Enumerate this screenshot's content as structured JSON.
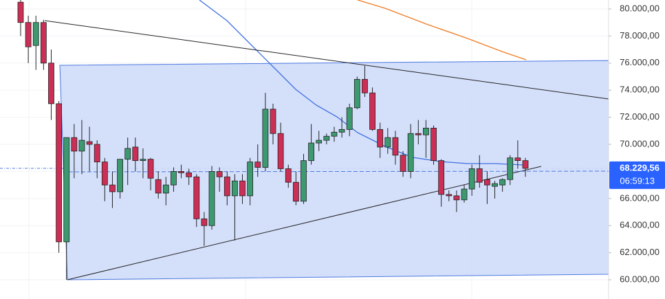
{
  "chart_data": {
    "type": "candlestick",
    "open": [
      80500,
      79000,
      77300,
      79000,
      76000,
      73000,
      62800,
      70500,
      69500,
      70200,
      70000,
      68700,
      67000,
      66500,
      68900,
      69800,
      68800,
      68900,
      67400,
      66400,
      67000,
      68000,
      67900,
      67600,
      64500,
      64000,
      68000,
      67600,
      66200,
      67300,
      66200,
      68700,
      68300,
      72600,
      70800,
      68200,
      67200,
      65800,
      68800,
      70100,
      70300,
      70600,
      70900,
      71100,
      72700,
      74800,
      73800,
      71100,
      69800,
      70500,
      69200,
      68000,
      70800,
      70700,
      71200,
      68800,
      66300,
      66200,
      65900,
      66700,
      68200,
      67400,
      66900,
      67000,
      67400,
      69000,
      68800
    ],
    "high": [
      81000,
      79500,
      79500,
      79200,
      77000,
      73200,
      70500,
      71500,
      71800,
      71300,
      70300,
      69000,
      68000,
      68700,
      70500,
      70500,
      69700,
      69000,
      68000,
      67600,
      68300,
      68500,
      68200,
      67800,
      65000,
      68400,
      68300,
      68000,
      67800,
      67800,
      69000,
      70000,
      73800,
      73000,
      71600,
      68500,
      68000,
      69300,
      71500,
      71000,
      70800,
      71300,
      72000,
      73000,
      75000,
      75800,
      74200,
      71600,
      71200,
      71000,
      69500,
      71500,
      71800,
      71800,
      71400,
      68900,
      66600,
      66600,
      67000,
      68500,
      69200,
      68000,
      67300,
      67500,
      69200,
      70300,
      69000
    ],
    "low": [
      78000,
      76000,
      75500,
      75500,
      71800,
      62000,
      60000,
      67500,
      67800,
      68000,
      67500,
      65800,
      65300,
      66000,
      67000,
      68000,
      67500,
      66600,
      66000,
      65500,
      66500,
      67500,
      67000,
      63900,
      62500,
      63700,
      66500,
      65500,
      62900,
      65600,
      65500,
      67600,
      68000,
      70000,
      68000,
      66800,
      65500,
      65600,
      68500,
      69500,
      70000,
      70200,
      70500,
      70600,
      72600,
      73500,
      71000,
      69000,
      69300,
      68500,
      67600,
      67500,
      70000,
      69000,
      68500,
      65400,
      65800,
      65000,
      65700,
      66200,
      66800,
      65600,
      66000,
      66500,
      67000,
      68200,
      67600
    ],
    "close": [
      79000,
      77200,
      79000,
      76000,
      73000,
      62800,
      70500,
      69500,
      70300,
      70000,
      68700,
      67000,
      66500,
      68900,
      69700,
      68800,
      68900,
      67500,
      66400,
      67000,
      68000,
      67900,
      67600,
      64500,
      64000,
      68000,
      67600,
      66200,
      67300,
      66200,
      68700,
      68300,
      72600,
      70800,
      68200,
      67200,
      65800,
      68800,
      70100,
      70300,
      70600,
      70900,
      71100,
      72700,
      74800,
      73800,
      71100,
      69800,
      70500,
      69200,
      68000,
      70800,
      70700,
      71200,
      68800,
      66300,
      66200,
      65900,
      66700,
      68200,
      67200,
      67000,
      67100,
      67400,
      69000,
      68800,
      68229.56
    ],
    "up_color": "#3d9a70",
    "down_color": "#cc2f55",
    "ylim": [
      58580,
      80660
    ],
    "yticks": [
      {
        "value": 60000,
        "label": "60.000,00"
      },
      {
        "value": 62000,
        "label": "62.000,00"
      },
      {
        "value": 64000,
        "label": "64.000,00"
      },
      {
        "value": 66000,
        "label": "66.000,00"
      },
      {
        "value": 68000,
        "label": "68.000,00"
      },
      {
        "value": 70000,
        "label": "70.000,00"
      },
      {
        "value": 72000,
        "label": "72.000,00"
      },
      {
        "value": 74000,
        "label": "74.000,00"
      },
      {
        "value": 76000,
        "label": "76.000,00"
      },
      {
        "value": 78000,
        "label": "78.000,00"
      },
      {
        "value": 80000,
        "label": "80.000,00"
      }
    ],
    "grid": true,
    "last_price": {
      "value": 68229.56,
      "label": "68.229,56"
    },
    "countdown": "06:59:13"
  }
}
